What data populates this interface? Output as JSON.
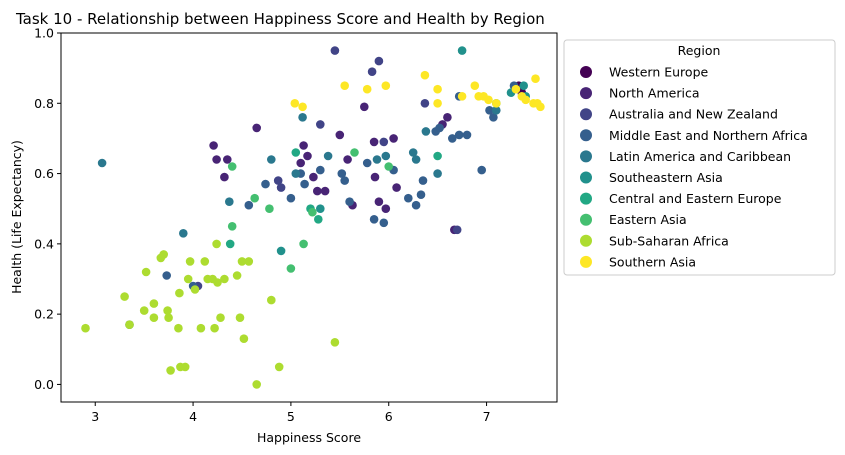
{
  "chart_data": {
    "type": "scatter",
    "title": "Task 10 - Relationship between Happiness Score and Health by Region",
    "xlabel": "Happiness Score",
    "ylabel": "Health (Life Expectancy)",
    "xlim": [
      2.65,
      7.72
    ],
    "ylim": [
      -0.05,
      1.0
    ],
    "xticks": [
      "3",
      "4",
      "5",
      "6",
      "7"
    ],
    "yticks": [
      "0.0",
      "0.2",
      "0.4",
      "0.6",
      "0.8",
      "1.0"
    ],
    "grid": false,
    "legend": {
      "title": "Region",
      "placement": "outside-right"
    },
    "series": [
      {
        "name": "Western Europe",
        "color": "#440154",
        "points": [
          [
            7.35,
            0.84
          ],
          [
            7.33,
            0.85
          ],
          [
            7.36,
            0.83
          ]
        ]
      },
      {
        "name": "North America",
        "color": "#482475",
        "points": [
          [
            4.21,
            0.68
          ],
          [
            4.24,
            0.64
          ],
          [
            4.35,
            0.64
          ],
          [
            4.32,
            0.59
          ],
          [
            4.65,
            0.73
          ],
          [
            5.1,
            0.63
          ],
          [
            5.13,
            0.68
          ],
          [
            5.17,
            0.65
          ],
          [
            5.23,
            0.59
          ],
          [
            5.27,
            0.55
          ],
          [
            5.35,
            0.55
          ],
          [
            5.5,
            0.71
          ],
          [
            5.58,
            0.64
          ],
          [
            5.63,
            0.51
          ],
          [
            5.75,
            0.79
          ],
          [
            5.85,
            0.69
          ],
          [
            5.86,
            0.59
          ],
          [
            5.9,
            0.52
          ],
          [
            5.97,
            0.5
          ],
          [
            6.05,
            0.7
          ],
          [
            6.08,
            0.56
          ],
          [
            6.6,
            0.76
          ],
          [
            6.55,
            0.74
          ],
          [
            6.67,
            0.44
          ]
        ]
      },
      {
        "name": "Australia and New Zealand",
        "color": "#414487",
        "points": [
          [
            5.45,
            0.95
          ],
          [
            5.9,
            0.92
          ],
          [
            5.83,
            0.89
          ],
          [
            4.87,
            0.58
          ],
          [
            4.9,
            0.56
          ],
          [
            5.3,
            0.74
          ],
          [
            5.95,
            0.69
          ],
          [
            6.37,
            0.8
          ],
          [
            6.7,
            0.44
          ],
          [
            4.05,
            0.28
          ]
        ]
      },
      {
        "name": "Middle East and Northern Africa",
        "color": "#355f8d",
        "points": [
          [
            3.73,
            0.31
          ],
          [
            4.0,
            0.28
          ],
          [
            4.57,
            0.51
          ],
          [
            4.74,
            0.57
          ],
          [
            5.0,
            0.53
          ],
          [
            5.1,
            0.6
          ],
          [
            5.14,
            0.57
          ],
          [
            5.3,
            0.61
          ],
          [
            5.52,
            0.6
          ],
          [
            5.55,
            0.58
          ],
          [
            5.6,
            0.52
          ],
          [
            5.78,
            0.63
          ],
          [
            5.85,
            0.47
          ],
          [
            5.95,
            0.46
          ],
          [
            6.05,
            0.61
          ],
          [
            6.2,
            0.53
          ],
          [
            6.28,
            0.51
          ],
          [
            6.33,
            0.54
          ],
          [
            6.35,
            0.58
          ],
          [
            6.48,
            0.72
          ],
          [
            6.52,
            0.73
          ],
          [
            6.65,
            0.7
          ],
          [
            6.72,
            0.71
          ],
          [
            6.8,
            0.71
          ],
          [
            6.72,
            0.82
          ],
          [
            6.95,
            0.61
          ],
          [
            7.03,
            0.78
          ],
          [
            7.07,
            0.76
          ],
          [
            7.28,
            0.85
          ]
        ]
      },
      {
        "name": "Latin America and Caribbean",
        "color": "#2a788e",
        "points": [
          [
            3.07,
            0.63
          ],
          [
            3.35,
            0.17
          ],
          [
            3.9,
            0.43
          ],
          [
            4.37,
            0.52
          ],
          [
            4.8,
            0.64
          ],
          [
            5.05,
            0.6
          ],
          [
            5.12,
            0.76
          ],
          [
            5.38,
            0.65
          ],
          [
            5.88,
            0.64
          ],
          [
            5.97,
            0.65
          ],
          [
            6.25,
            0.66
          ],
          [
            6.28,
            0.64
          ],
          [
            6.38,
            0.72
          ],
          [
            6.5,
            0.6
          ],
          [
            7.1,
            0.78
          ]
        ]
      },
      {
        "name": "Southeastern Asia",
        "color": "#21918c",
        "points": [
          [
            4.9,
            0.38
          ],
          [
            5.3,
            0.5
          ],
          [
            6.75,
            0.95
          ],
          [
            7.25,
            0.83
          ],
          [
            7.4,
            0.82
          ],
          [
            7.38,
            0.85
          ]
        ]
      },
      {
        "name": "Central and Eastern Europe",
        "color": "#22a884",
        "points": [
          [
            4.38,
            0.4
          ],
          [
            5.05,
            0.66
          ],
          [
            5.2,
            0.5
          ],
          [
            5.28,
            0.47
          ],
          [
            6.5,
            0.65
          ],
          [
            7.1,
            0.8
          ]
        ]
      },
      {
        "name": "Eastern Asia",
        "color": "#44bf70",
        "points": [
          [
            4.4,
            0.62
          ],
          [
            4.63,
            0.53
          ],
          [
            4.78,
            0.5
          ],
          [
            5.0,
            0.33
          ],
          [
            5.13,
            0.4
          ],
          [
            5.22,
            0.49
          ],
          [
            5.65,
            0.66
          ],
          [
            6.0,
            0.62
          ],
          [
            4.4,
            0.45
          ]
        ]
      },
      {
        "name": "Sub-Saharan Africa",
        "color": "#addc30",
        "points": [
          [
            2.9,
            0.16
          ],
          [
            3.3,
            0.25
          ],
          [
            3.35,
            0.17
          ],
          [
            3.5,
            0.21
          ],
          [
            3.52,
            0.32
          ],
          [
            3.6,
            0.19
          ],
          [
            3.6,
            0.23
          ],
          [
            3.67,
            0.36
          ],
          [
            3.7,
            0.37
          ],
          [
            3.74,
            0.21
          ],
          [
            3.75,
            0.19
          ],
          [
            3.77,
            0.04
          ],
          [
            3.85,
            0.16
          ],
          [
            3.86,
            0.26
          ],
          [
            3.87,
            0.05
          ],
          [
            3.92,
            0.05
          ],
          [
            3.95,
            0.3
          ],
          [
            3.97,
            0.35
          ],
          [
            4.02,
            0.27
          ],
          [
            4.08,
            0.16
          ],
          [
            4.12,
            0.35
          ],
          [
            4.15,
            0.3
          ],
          [
            4.2,
            0.3
          ],
          [
            4.22,
            0.16
          ],
          [
            4.24,
            0.4
          ],
          [
            4.25,
            0.29
          ],
          [
            4.28,
            0.19
          ],
          [
            4.32,
            0.3
          ],
          [
            4.45,
            0.31
          ],
          [
            4.48,
            0.19
          ],
          [
            4.5,
            0.35
          ],
          [
            4.52,
            0.13
          ],
          [
            4.57,
            0.35
          ],
          [
            4.65,
            0.0
          ],
          [
            4.8,
            0.24
          ],
          [
            4.88,
            0.05
          ],
          [
            5.45,
            0.12
          ]
        ]
      },
      {
        "name": "Southern Asia",
        "color": "#fde725",
        "points": [
          [
            5.04,
            0.8
          ],
          [
            5.12,
            0.79
          ],
          [
            5.55,
            0.85
          ],
          [
            5.78,
            0.84
          ],
          [
            5.97,
            0.85
          ],
          [
            6.37,
            0.88
          ],
          [
            6.5,
            0.84
          ],
          [
            6.5,
            0.8
          ],
          [
            6.75,
            0.82
          ],
          [
            6.88,
            0.85
          ],
          [
            6.92,
            0.82
          ],
          [
            6.97,
            0.82
          ],
          [
            7.02,
            0.81
          ],
          [
            7.1,
            0.8
          ],
          [
            7.3,
            0.84
          ],
          [
            7.36,
            0.82
          ],
          [
            7.4,
            0.81
          ],
          [
            7.5,
            0.87
          ],
          [
            7.52,
            0.8
          ],
          [
            7.55,
            0.79
          ],
          [
            7.48,
            0.8
          ]
        ]
      }
    ]
  }
}
